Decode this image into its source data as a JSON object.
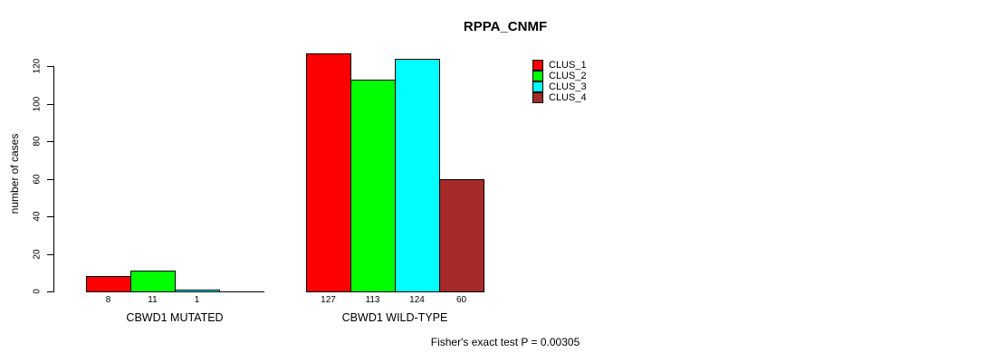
{
  "chart_data": {
    "type": "bar",
    "title": "RPPA_CNMF",
    "ylabel": "number of cases",
    "xlabel": "",
    "ylim": [
      0,
      130
    ],
    "yticks": [
      0,
      20,
      40,
      60,
      80,
      100,
      120
    ],
    "categories": [
      "CBWD1 MUTATED",
      "CBWD1 WILD-TYPE"
    ],
    "series": [
      {
        "name": "CLUS_1",
        "color": "#FF0000",
        "values": [
          8,
          127
        ]
      },
      {
        "name": "CLUS_2",
        "color": "#00FF00",
        "values": [
          11,
          113
        ]
      },
      {
        "name": "CLUS_3",
        "color": "#00FFFF",
        "values": [
          1,
          124
        ]
      },
      {
        "name": "CLUS_4",
        "color": "#A52A2A",
        "values": [
          0,
          60
        ]
      }
    ],
    "bar_value_labels": [
      [
        "8",
        "11",
        "1",
        ""
      ],
      [
        "127",
        "113",
        "124",
        "60"
      ]
    ],
    "legend_position": "top-right",
    "grid": false,
    "annotation": "Fisher's exact test P = 0.00305"
  }
}
